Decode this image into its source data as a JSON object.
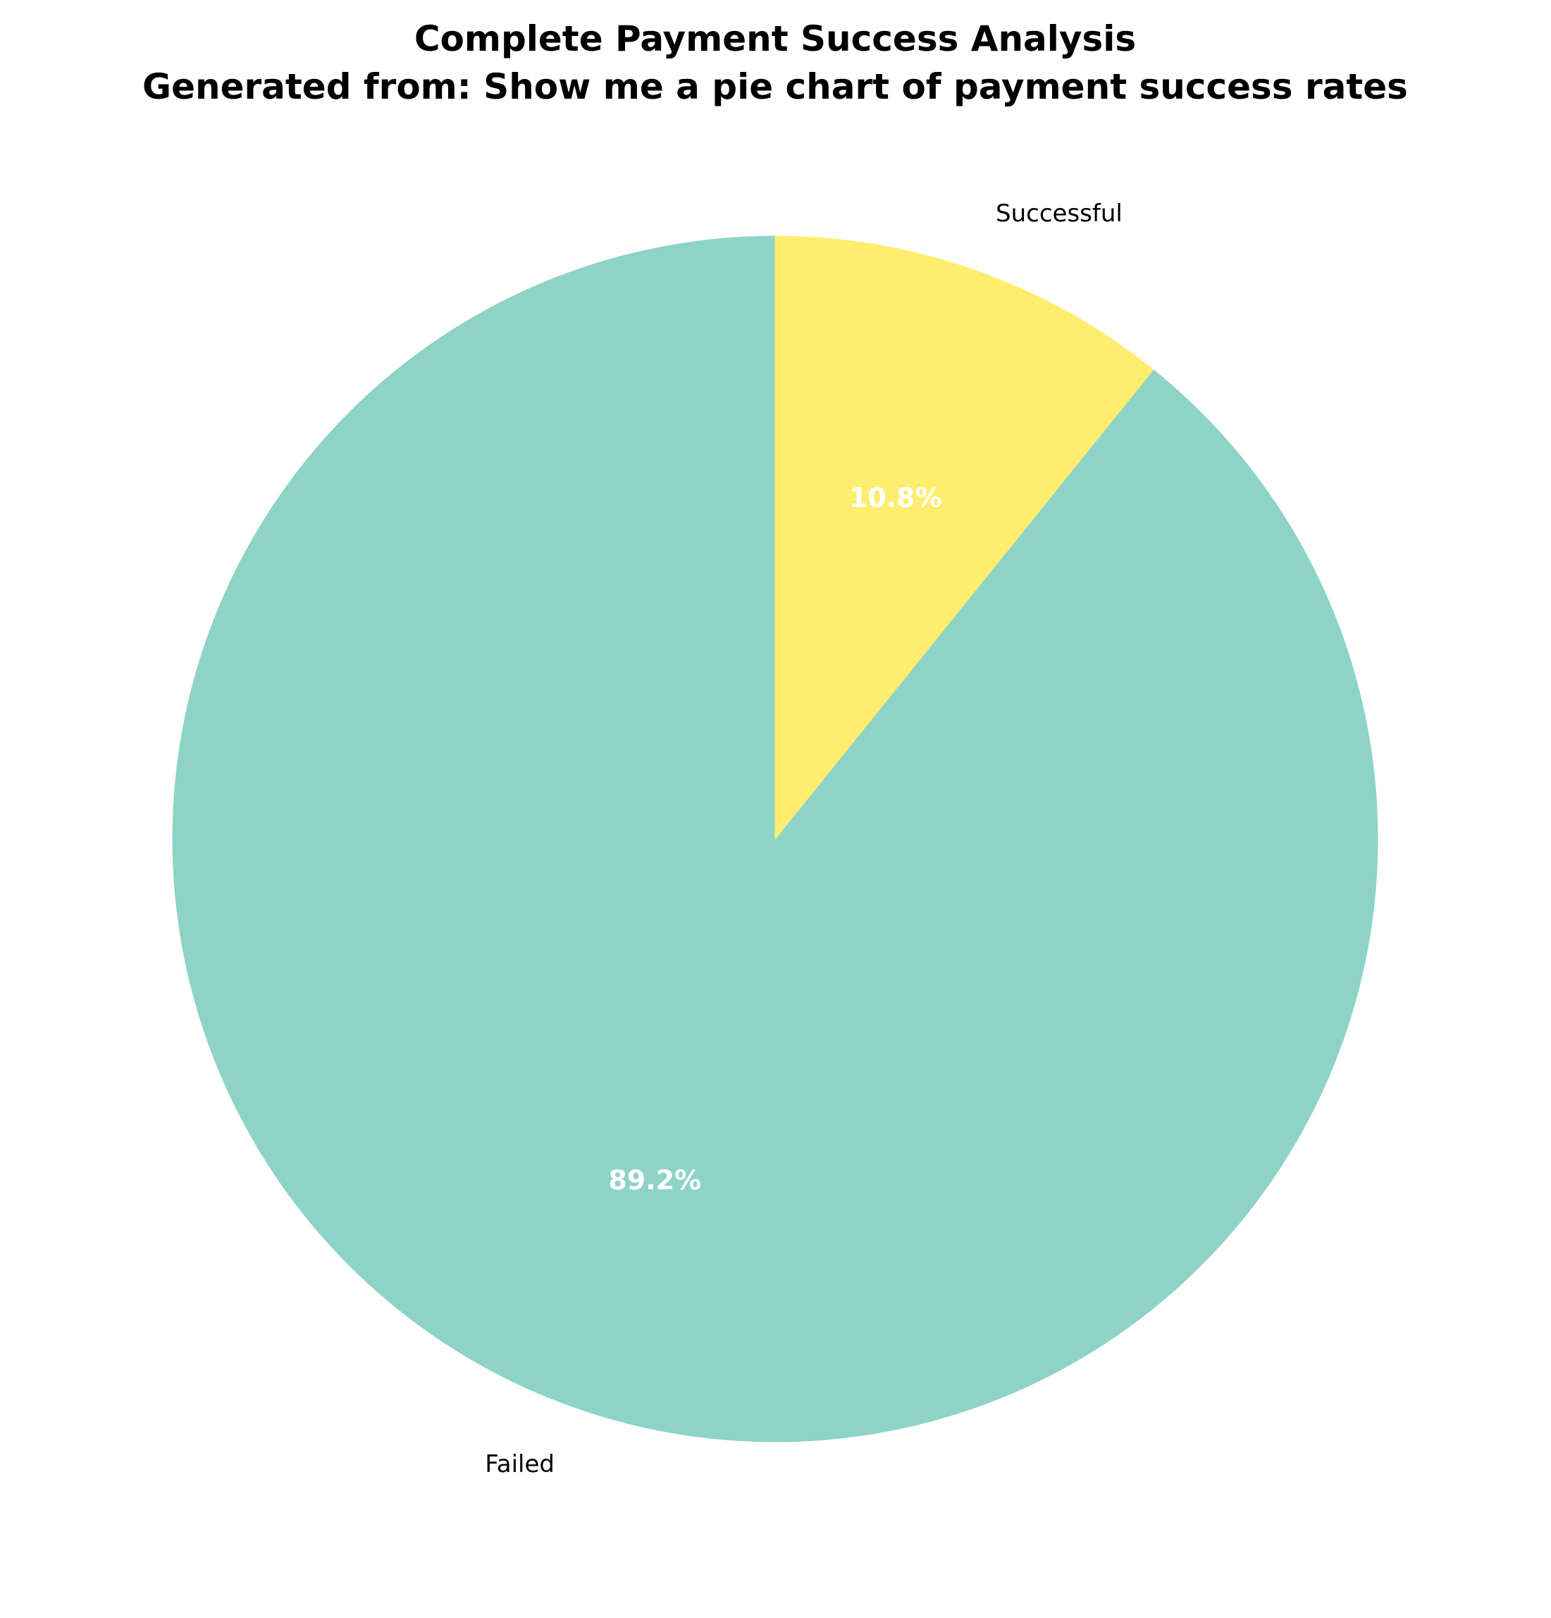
{
  "chart_data": {
    "type": "pie",
    "title_lines": [
      "Complete Payment Success Analysis",
      "Generated from: Show me a pie chart of payment success rates"
    ],
    "start_angle_deg": 90,
    "direction": "counterclockwise",
    "slices": [
      {
        "label": "Failed",
        "value": 89.2,
        "pct_label": "89.2%",
        "color": "#8ed3c7"
      },
      {
        "label": "Successful",
        "value": 10.8,
        "pct_label": "10.8%",
        "color": "#ffed6f"
      }
    ],
    "legend": "none"
  }
}
